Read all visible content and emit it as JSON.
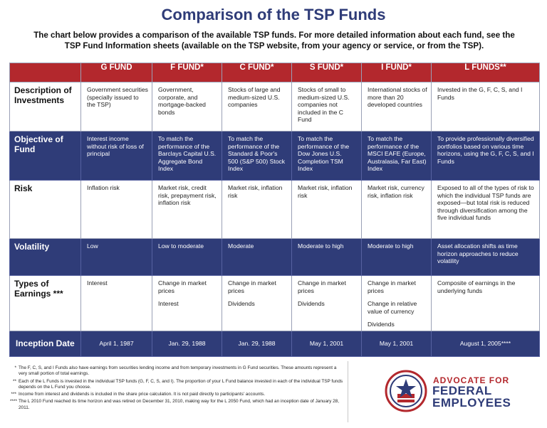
{
  "title": "Comparison of the TSP Funds",
  "intro": "The chart below provides a comparison of the available TSP funds. For more detailed information about each fund, see the TSP Fund Information sheets (available on the TSP website, from your agency or service, or from the TSP).",
  "columns": [
    "G FUND",
    "F FUND*",
    "C FUND*",
    "S FUND*",
    "I FUND*",
    "L FUNDS**"
  ],
  "rows": {
    "description": {
      "label": "Description of Investments",
      "cells": [
        [
          "Government securities (specially issued to the TSP)"
        ],
        [
          "Government, corporate, and mortgage-backed bonds"
        ],
        [
          "Stocks of large and medium-sized U.S. companies"
        ],
        [
          "Stocks of small to medium-sized U.S. companies not included in the C Fund"
        ],
        [
          "International stocks of more than 20 developed countries"
        ],
        [
          "Invested in the G, F, C, S, and I Funds"
        ]
      ]
    },
    "objective": {
      "label": "Objective of Fund",
      "cells": [
        [
          "Interest income without risk of loss of principal"
        ],
        [
          "To match the performance of the Barclays Capital U.S. Aggregate Bond Index"
        ],
        [
          "To match the performance of the Standard & Poor's 500 (S&P 500) Stock Index"
        ],
        [
          "To match the performance of the Dow Jones U.S. Completion TSM Index"
        ],
        [
          "To match the performance of the MSCI EAFE (Europe, Australasia, Far East) Index"
        ],
        [
          "To provide professionally diversified portfolios based on various time horizons, using the G, F, C, S, and I Funds"
        ]
      ]
    },
    "risk": {
      "label": "Risk",
      "cells": [
        [
          "Inflation risk"
        ],
        [
          "Market risk, credit risk, prepayment risk, inflation risk"
        ],
        [
          "Market risk, inflation risk"
        ],
        [
          "Market risk, inflation risk"
        ],
        [
          "Market risk, currency risk, inflation risk"
        ],
        [
          "Exposed to all of the types of risk to which the individual TSP funds are exposed—but total risk is reduced through diversification among the five individual funds"
        ]
      ]
    },
    "volatility": {
      "label": "Volatility",
      "cells": [
        [
          "Low"
        ],
        [
          "Low to moderate"
        ],
        [
          "Moderate"
        ],
        [
          "Moderate to high"
        ],
        [
          "Moderate to high"
        ],
        [
          "Asset allocation shifts as time horizon approaches to reduce volatility"
        ]
      ]
    },
    "earnings": {
      "label": "Types of Earnings ***",
      "cells": [
        [
          "Interest"
        ],
        [
          "Change in market prices",
          "Interest"
        ],
        [
          "Change in market prices",
          "Dividends"
        ],
        [
          "Change in market prices",
          "Dividends"
        ],
        [
          "Change in market prices",
          "Change in relative value of currency",
          "Dividends"
        ],
        [
          "Composite of earnings in the underlying funds"
        ]
      ]
    },
    "inception": {
      "label": "Inception Date",
      "cells": [
        [
          "April 1, 1987"
        ],
        [
          "Jan. 29, 1988"
        ],
        [
          "Jan. 29, 1988"
        ],
        [
          "May 1, 2001"
        ],
        [
          "May 1, 2001"
        ],
        [
          "August 1, 2005****"
        ]
      ]
    }
  },
  "footnotes": [
    {
      "mark": "*",
      "text": "The F, C, S, and I Funds also have earnings from securities lending income and from temporary investments in G Fund securities. These amounts represent a very small portion of total earnings."
    },
    {
      "mark": "**",
      "text": "Each of the L Funds is invested in the individual TSP funds (G, F, C, S, and I). The proportion of your L Fund balance invested in each of the individual TSP funds depends on the L Fund you choose."
    },
    {
      "mark": "***",
      "text": "Income from interest and dividends is included in the share price calculation. It is not paid directly to participants' accounts."
    },
    {
      "mark": "****",
      "text": "The L 2010 Fund reached its time horizon and was retired on December 31, 2010, making way for the L 2050 Fund, which had an inception date of January 28, 2011."
    }
  ],
  "logo": {
    "line1": "ADVOCATE FOR",
    "line2": "FEDERAL",
    "line3": "EMPLOYEES",
    "colors": {
      "red": "#b3282d",
      "navy": "#2f3c78"
    }
  }
}
